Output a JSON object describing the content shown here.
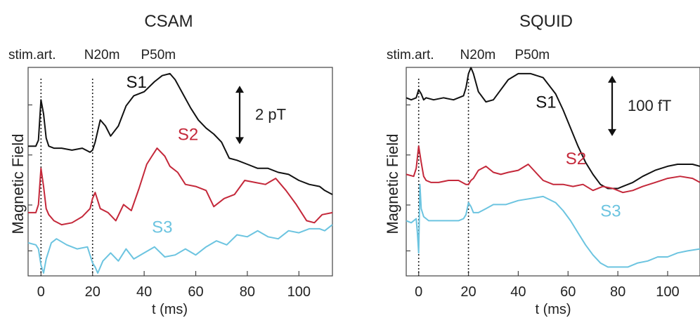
{
  "chart_data": [
    {
      "type": "line",
      "title": "CSAM",
      "xlabel": "t (ms)",
      "ylabel": "Magnetic Field",
      "xlim": [
        -5,
        113
      ],
      "ylim": [
        0,
        10
      ],
      "xticks": [
        0,
        20,
        40,
        60,
        80,
        100
      ],
      "markers": [
        {
          "label": "stim.art.",
          "x": 0,
          "line": true
        },
        {
          "label": "N20m",
          "x": 20,
          "line": true
        },
        {
          "label": "P50m",
          "x": 42,
          "line": false
        }
      ],
      "scale_bar": {
        "label": "2 pT",
        "y_from": 6.4,
        "y_to": 9.3
      },
      "series": [
        {
          "name": "S1",
          "color": "#111111",
          "label_at": [
            33,
            9.2
          ],
          "x": [
            -5,
            -2,
            -1,
            0,
            1,
            2,
            3,
            5,
            8,
            12,
            16,
            19,
            20,
            21,
            23,
            25,
            27,
            30,
            33,
            36,
            40,
            44,
            47,
            50,
            52,
            55,
            58,
            61,
            64,
            67,
            70,
            73,
            76,
            80,
            84,
            88,
            92,
            96,
            100,
            104,
            108,
            110,
            113
          ],
          "y": [
            6.3,
            6.3,
            6.6,
            8.6,
            7.9,
            6.7,
            6.3,
            6.2,
            6.2,
            6.1,
            6.2,
            6.0,
            6.1,
            6.5,
            7.6,
            7.3,
            6.8,
            7.3,
            8.3,
            8.8,
            9.0,
            9.5,
            9.8,
            9.9,
            9.6,
            8.9,
            8.2,
            7.6,
            7.2,
            6.9,
            6.5,
            5.7,
            5.6,
            5.4,
            5.2,
            5.2,
            5.0,
            4.9,
            4.6,
            4.4,
            4.3,
            4.1,
            3.9
          ]
        },
        {
          "name": "S2",
          "color": "#c4283a",
          "label_at": [
            53,
            6.6
          ],
          "x": [
            -5,
            -2,
            -1,
            0,
            1,
            2,
            3,
            5,
            8,
            12,
            16,
            19,
            20,
            21,
            23,
            26,
            29,
            32,
            35,
            38,
            41,
            43,
            45,
            48,
            50,
            53,
            56,
            60,
            64,
            67,
            71,
            75,
            79,
            83,
            87,
            91,
            95,
            99,
            103,
            106,
            109,
            113
          ],
          "y": [
            3.0,
            3.0,
            3.4,
            5.2,
            4.3,
            3.2,
            2.9,
            2.6,
            2.4,
            2.5,
            2.8,
            3.2,
            3.7,
            4.0,
            3.2,
            3.0,
            2.6,
            3.4,
            3.1,
            4.2,
            5.4,
            5.8,
            6.2,
            5.8,
            5.3,
            5.0,
            4.4,
            4.3,
            4.1,
            3.3,
            3.7,
            3.9,
            4.6,
            4.5,
            4.4,
            4.7,
            4.1,
            3.4,
            2.6,
            2.5,
            2.9,
            3.0
          ]
        },
        {
          "name": "S3",
          "color": "#6cc4e0",
          "label_at": [
            43,
            2.0
          ],
          "x": [
            -5,
            -2,
            -1,
            0,
            1,
            2,
            4,
            6,
            10,
            14,
            18,
            20,
            21,
            22,
            24,
            27,
            30,
            33,
            36,
            40,
            44,
            48,
            52,
            56,
            60,
            64,
            68,
            72,
            76,
            80,
            84,
            88,
            92,
            96,
            100,
            104,
            108,
            110,
            113
          ],
          "y": [
            1.5,
            1.4,
            1.2,
            0.4,
            0.0,
            0.7,
            1.5,
            1.7,
            1.4,
            1.2,
            1.3,
            0.5,
            0.3,
            0.0,
            0.6,
            1.0,
            0.6,
            1.2,
            0.7,
            1.0,
            1.3,
            0.8,
            0.9,
            1.2,
            0.9,
            1.3,
            1.6,
            1.4,
            1.9,
            1.8,
            2.1,
            1.8,
            1.7,
            2.1,
            2.0,
            2.2,
            2.2,
            2.1,
            2.4
          ]
        }
      ]
    },
    {
      "type": "line",
      "title": "SQUID",
      "xlabel": "t (ms)",
      "ylabel": "Magnetic Field",
      "xlim": [
        -5,
        113
      ],
      "ylim": [
        0,
        10
      ],
      "xticks": [
        0,
        20,
        40,
        60,
        80,
        100
      ],
      "markers": [
        {
          "label": "stim.art.",
          "x": 0,
          "line": true
        },
        {
          "label": "N20m",
          "x": 20,
          "line": true
        },
        {
          "label": "P50m",
          "x": 42,
          "line": false
        }
      ],
      "scale_bar": {
        "label": "100  fT",
        "y_from": 6.8,
        "y_to": 9.8
      },
      "series": [
        {
          "name": "S1",
          "color": "#111111",
          "label_at": [
            47,
            8.2
          ],
          "x": [
            -5,
            -3,
            -1,
            0,
            1,
            2,
            3,
            6,
            10,
            14,
            18,
            19,
            20,
            21,
            22,
            24,
            27,
            30,
            33,
            36,
            40,
            45,
            50,
            55,
            58,
            61,
            64,
            67,
            70,
            73,
            76,
            78,
            80,
            82,
            86,
            90,
            95,
            100,
            104,
            108,
            110,
            113
          ],
          "y": [
            8.7,
            8.6,
            8.7,
            9.1,
            8.9,
            8.6,
            8.7,
            8.6,
            8.7,
            8.6,
            8.8,
            9.2,
            9.9,
            10.2,
            9.9,
            9.0,
            8.5,
            8.6,
            9.1,
            9.6,
            9.9,
            9.9,
            9.7,
            8.9,
            8.1,
            7.2,
            6.3,
            5.5,
            4.9,
            4.4,
            4.2,
            4.2,
            4.2,
            4.3,
            4.5,
            4.8,
            5.1,
            5.3,
            5.4,
            5.4,
            5.4,
            5.3
          ]
        },
        {
          "name": "S2",
          "color": "#c4283a",
          "label_at": [
            59,
            5.4
          ],
          "x": [
            -5,
            -2,
            -1,
            0,
            1,
            2,
            3,
            5,
            8,
            12,
            16,
            19,
            20,
            21,
            22,
            24,
            27,
            30,
            33,
            36,
            40,
            44,
            47,
            50,
            54,
            58,
            62,
            66,
            70,
            74,
            78,
            82,
            86,
            90,
            95,
            100,
            105,
            110,
            113
          ],
          "y": [
            4.9,
            4.8,
            5.2,
            6.3,
            5.5,
            4.8,
            4.6,
            4.5,
            4.5,
            4.6,
            4.6,
            4.4,
            4.4,
            4.6,
            4.7,
            5.1,
            5.3,
            5.0,
            4.9,
            5.0,
            5.1,
            5.4,
            5.0,
            4.6,
            4.4,
            4.4,
            4.3,
            4.4,
            4.1,
            4.3,
            4.2,
            4.0,
            4.1,
            4.3,
            4.5,
            4.7,
            4.8,
            4.7,
            4.5
          ]
        },
        {
          "name": "S3",
          "color": "#6cc4e0",
          "label_at": [
            73,
            2.8
          ],
          "x": [
            -5,
            -3,
            -1,
            -0.5,
            0,
            0.5,
            1,
            2,
            4,
            8,
            12,
            16,
            18,
            19,
            20,
            21,
            22,
            24,
            27,
            30,
            35,
            40,
            45,
            50,
            55,
            58,
            61,
            64,
            67,
            70,
            73,
            76,
            80,
            84,
            88,
            92,
            96,
            100,
            104,
            108,
            113
          ],
          "y": [
            2.6,
            2.5,
            2.7,
            2.0,
            1.0,
            4.4,
            3.2,
            2.8,
            2.6,
            2.6,
            2.6,
            2.6,
            2.7,
            2.9,
            3.5,
            3.3,
            3.0,
            3.0,
            3.2,
            3.4,
            3.4,
            3.6,
            3.7,
            3.8,
            3.5,
            3.1,
            2.6,
            2.0,
            1.4,
            0.9,
            0.5,
            0.3,
            0.3,
            0.3,
            0.5,
            0.6,
            0.8,
            0.8,
            1.0,
            1.1,
            1.2
          ]
        }
      ]
    }
  ]
}
